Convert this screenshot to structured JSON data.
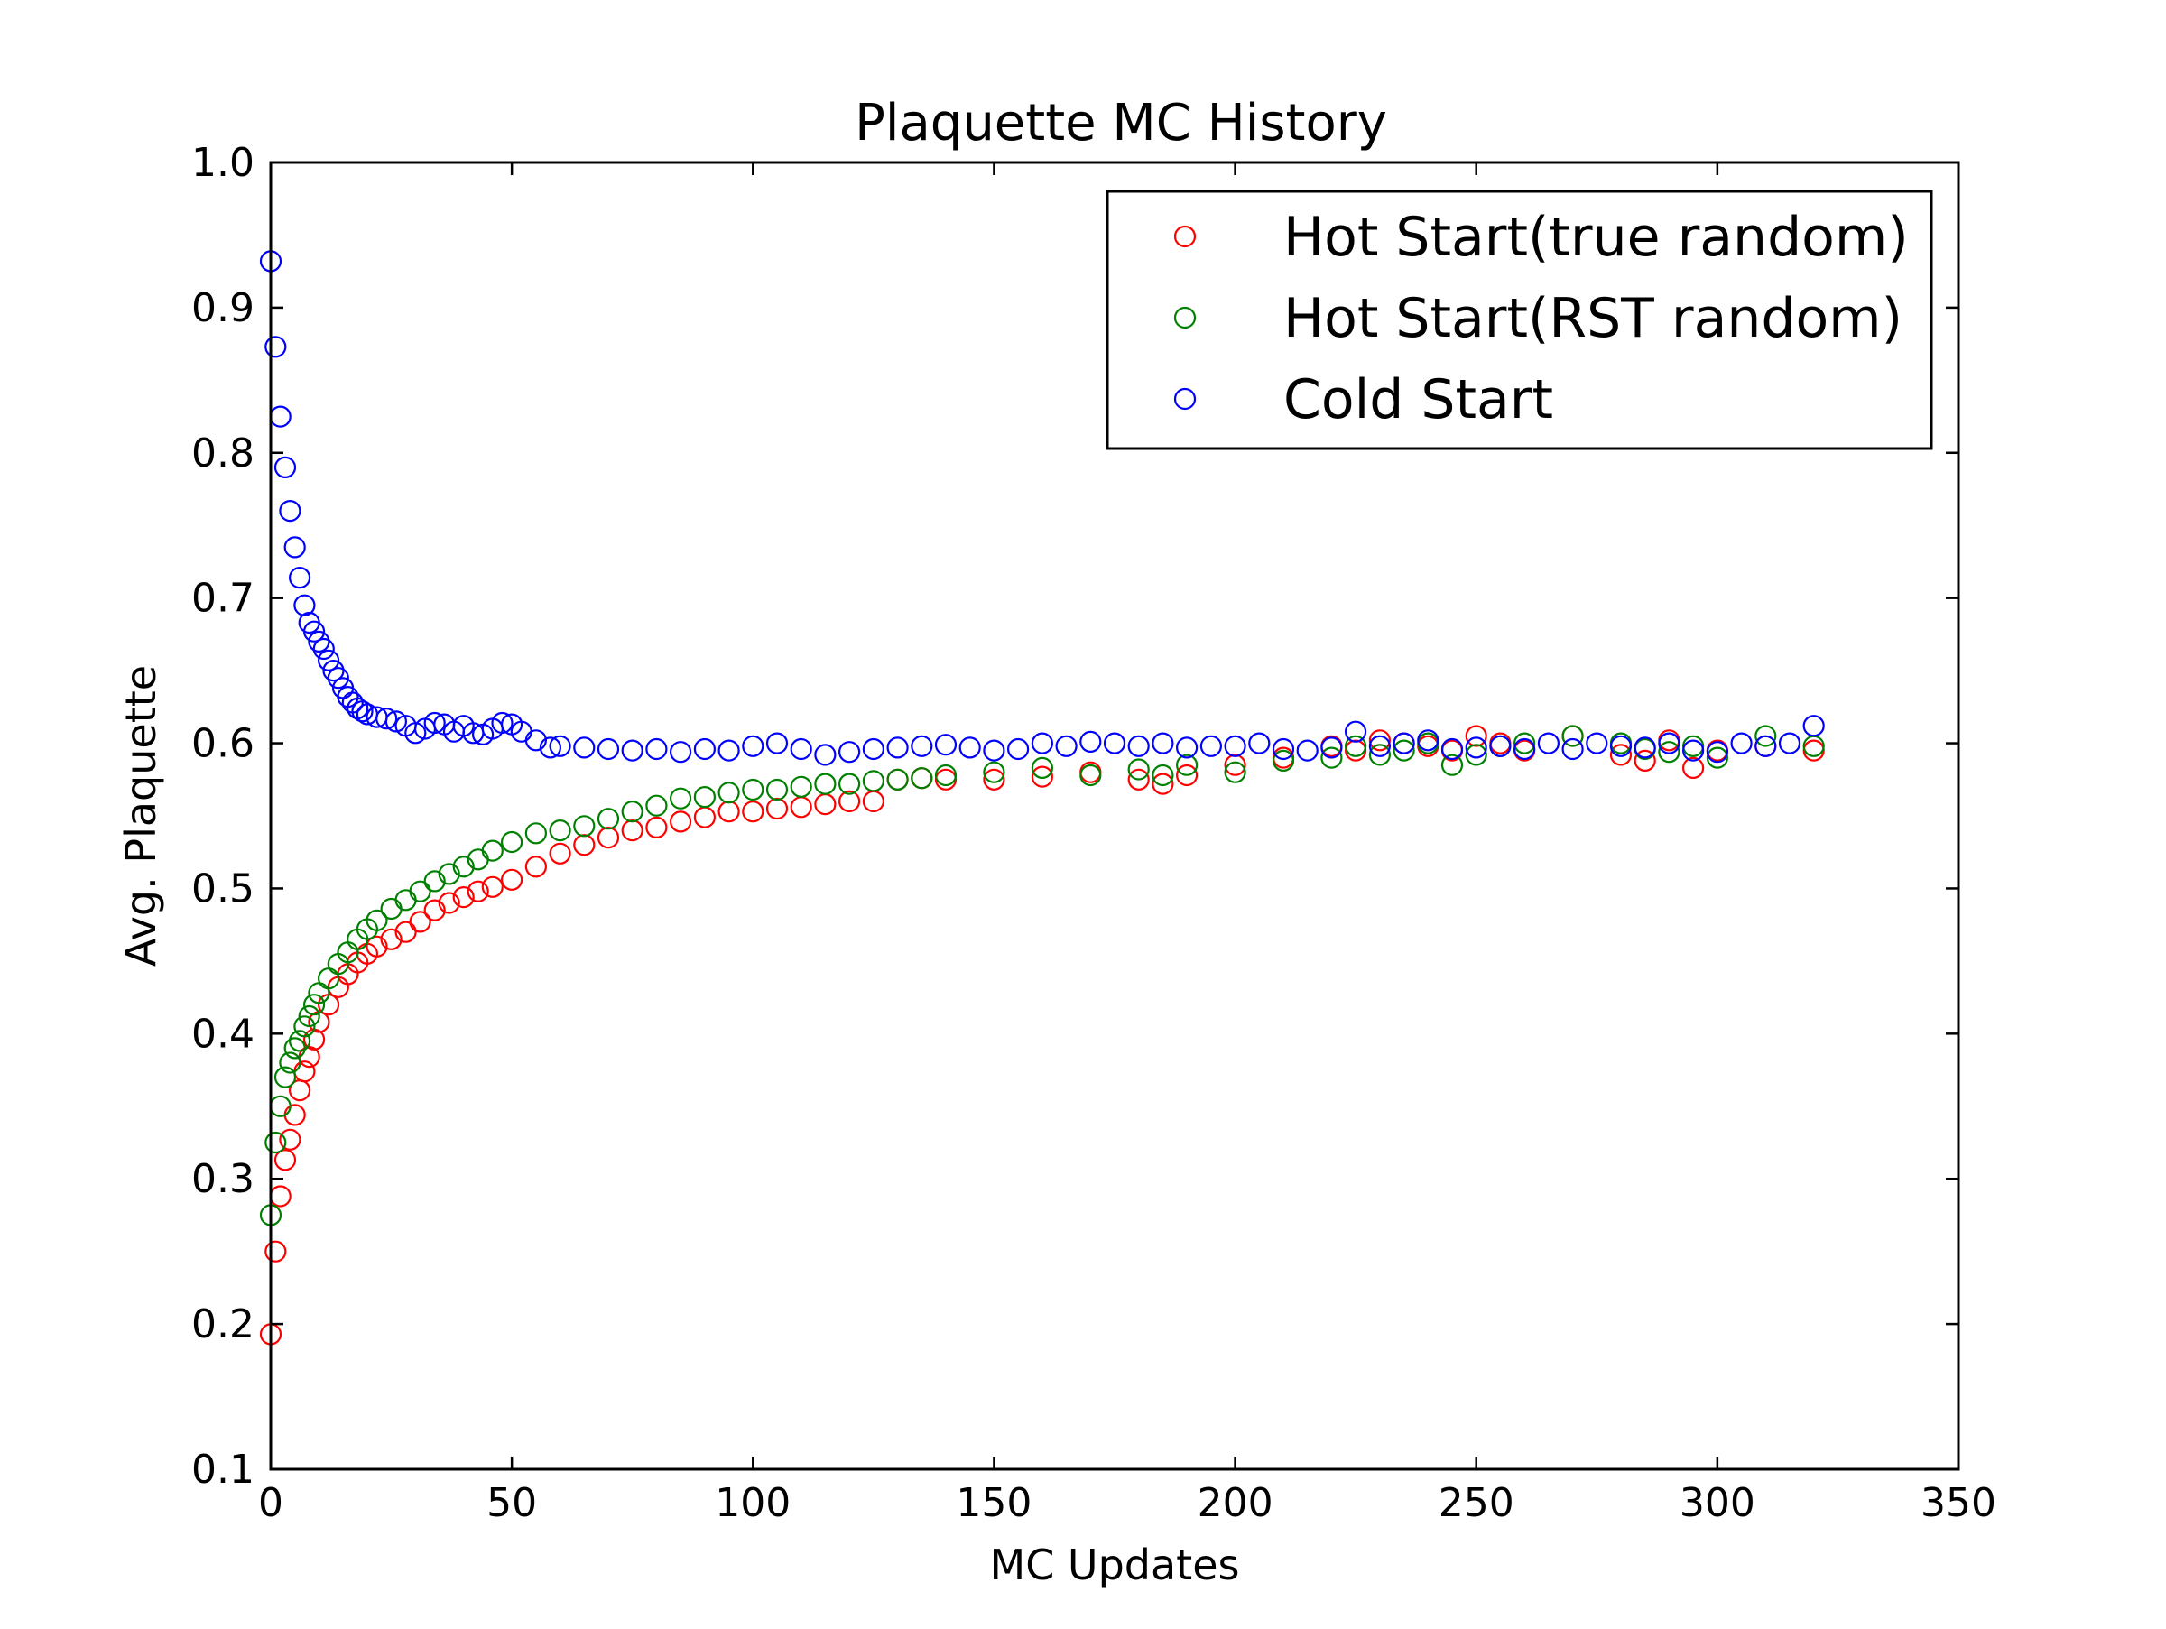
{
  "chart_data": {
    "type": "scatter",
    "title": "Plaquette MC History",
    "xlabel": "MC Updates",
    "ylabel": "Avg. Plaquette",
    "xlim": [
      0,
      350
    ],
    "ylim": [
      0.1,
      1.0
    ],
    "xticks": [
      "0",
      "50",
      "100",
      "150",
      "200",
      "250",
      "300",
      "350"
    ],
    "yticks": [
      "0.1",
      "0.2",
      "0.3",
      "0.4",
      "0.5",
      "0.6",
      "0.7",
      "0.8",
      "0.9",
      "1.0"
    ],
    "grid": false,
    "legend_position": "upper-right",
    "marker": "open-circle",
    "series": [
      {
        "name": "Hot Start(true random)",
        "color": "#ff0000",
        "x": [
          0,
          1,
          2,
          3,
          4,
          5,
          6,
          7,
          8,
          9,
          10,
          12,
          14,
          16,
          18,
          20,
          22,
          25,
          28,
          31,
          34,
          37,
          40,
          43,
          46,
          50,
          55,
          60,
          65,
          70,
          75,
          80,
          85,
          90,
          95,
          100,
          105,
          110,
          115,
          120,
          125,
          130,
          135,
          140,
          150,
          160,
          170,
          180,
          185,
          190,
          200,
          210,
          220,
          225,
          230,
          235,
          240,
          245,
          250,
          255,
          260,
          270,
          280,
          285,
          290,
          295,
          300,
          310,
          320
        ],
        "y": [
          0.193,
          0.25,
          0.288,
          0.313,
          0.327,
          0.344,
          0.361,
          0.374,
          0.384,
          0.396,
          0.408,
          0.42,
          0.432,
          0.441,
          0.449,
          0.455,
          0.46,
          0.465,
          0.47,
          0.477,
          0.485,
          0.49,
          0.494,
          0.498,
          0.501,
          0.506,
          0.515,
          0.524,
          0.53,
          0.535,
          0.54,
          0.542,
          0.546,
          0.549,
          0.553,
          0.553,
          0.555,
          0.556,
          0.558,
          0.56,
          0.56,
          0.575,
          0.576,
          0.575,
          0.575,
          0.577,
          0.58,
          0.575,
          0.572,
          0.578,
          0.585,
          0.59,
          0.598,
          0.595,
          0.602,
          0.6,
          0.598,
          0.595,
          0.605,
          0.6,
          0.595,
          0.605,
          0.592,
          0.588,
          0.602,
          0.583,
          0.595,
          0.598,
          0.595
        ]
      },
      {
        "name": "Hot Start(RST random)",
        "color": "#008000",
        "x": [
          0,
          1,
          2,
          3,
          4,
          5,
          6,
          7,
          8,
          9,
          10,
          12,
          14,
          16,
          18,
          20,
          22,
          25,
          28,
          31,
          34,
          37,
          40,
          43,
          46,
          50,
          55,
          60,
          65,
          70,
          75,
          80,
          85,
          90,
          95,
          100,
          105,
          110,
          115,
          120,
          125,
          130,
          135,
          140,
          150,
          160,
          170,
          180,
          185,
          190,
          200,
          210,
          220,
          225,
          230,
          235,
          240,
          245,
          250,
          255,
          260,
          270,
          280,
          285,
          290,
          295,
          300,
          310,
          320
        ],
        "y": [
          0.275,
          0.325,
          0.35,
          0.37,
          0.38,
          0.39,
          0.395,
          0.405,
          0.412,
          0.42,
          0.428,
          0.438,
          0.448,
          0.456,
          0.465,
          0.472,
          0.478,
          0.486,
          0.492,
          0.498,
          0.505,
          0.51,
          0.515,
          0.52,
          0.526,
          0.532,
          0.538,
          0.54,
          0.543,
          0.548,
          0.553,
          0.557,
          0.562,
          0.563,
          0.566,
          0.568,
          0.568,
          0.57,
          0.572,
          0.572,
          0.574,
          0.575,
          0.576,
          0.578,
          0.58,
          0.583,
          0.578,
          0.582,
          0.578,
          0.585,
          0.58,
          0.588,
          0.59,
          0.598,
          0.592,
          0.595,
          0.6,
          0.585,
          0.592,
          0.598,
          0.6,
          0.605,
          0.6,
          0.596,
          0.594,
          0.598,
          0.59,
          0.605,
          0.598
        ]
      },
      {
        "name": "Cold Start",
        "color": "#0000ff",
        "x": [
          0,
          1,
          2,
          3,
          4,
          5,
          6,
          7,
          8,
          9,
          10,
          11,
          12,
          13,
          14,
          15,
          16,
          17,
          18,
          19,
          20,
          22,
          24,
          26,
          28,
          30,
          32,
          34,
          36,
          38,
          40,
          42,
          44,
          46,
          48,
          50,
          52,
          55,
          58,
          60,
          65,
          70,
          75,
          80,
          85,
          90,
          95,
          100,
          105,
          110,
          115,
          120,
          125,
          130,
          135,
          140,
          145,
          150,
          155,
          160,
          165,
          170,
          175,
          180,
          185,
          190,
          195,
          200,
          205,
          210,
          215,
          220,
          225,
          230,
          235,
          240,
          245,
          250,
          255,
          260,
          265,
          270,
          275,
          280,
          285,
          290,
          295,
          300,
          305,
          310,
          315,
          320
        ],
        "y": [
          0.932,
          0.873,
          0.825,
          0.79,
          0.76,
          0.735,
          0.714,
          0.695,
          0.683,
          0.677,
          0.67,
          0.665,
          0.657,
          0.65,
          0.645,
          0.638,
          0.632,
          0.628,
          0.624,
          0.622,
          0.62,
          0.618,
          0.617,
          0.615,
          0.612,
          0.607,
          0.61,
          0.614,
          0.613,
          0.608,
          0.612,
          0.607,
          0.606,
          0.61,
          0.614,
          0.613,
          0.608,
          0.602,
          0.597,
          0.598,
          0.597,
          0.596,
          0.595,
          0.596,
          0.594,
          0.596,
          0.595,
          0.598,
          0.6,
          0.596,
          0.592,
          0.594,
          0.596,
          0.597,
          0.598,
          0.599,
          0.597,
          0.595,
          0.596,
          0.6,
          0.598,
          0.601,
          0.6,
          0.598,
          0.6,
          0.597,
          0.598,
          0.598,
          0.6,
          0.596,
          0.595,
          0.597,
          0.608,
          0.598,
          0.6,
          0.602,
          0.596,
          0.597,
          0.598,
          0.596,
          0.6,
          0.596,
          0.6,
          0.598,
          0.597,
          0.6,
          0.595,
          0.594,
          0.6,
          0.598,
          0.6,
          0.612
        ]
      }
    ]
  }
}
